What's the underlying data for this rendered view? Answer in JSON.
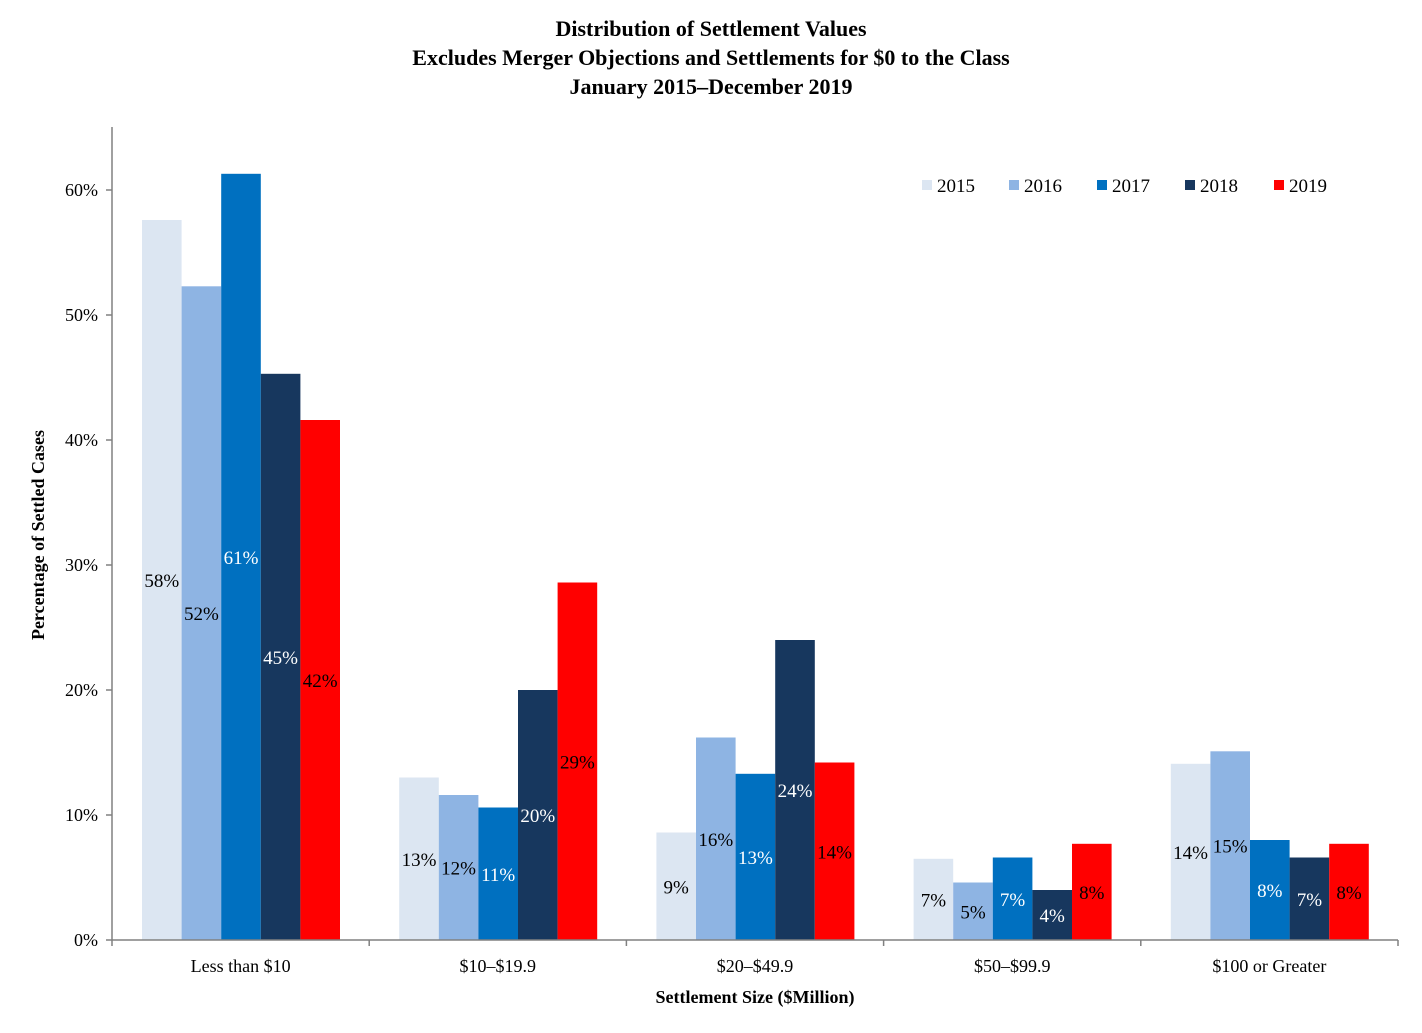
{
  "chart_data": {
    "type": "bar",
    "title": "Distribution of Settlement Values",
    "subtitle": "Excludes Merger Objections and Settlements for $0 to the Class",
    "subtitle2": "January 2015–December 2019",
    "xlabel": "Settlement Size ($Million)",
    "ylabel": "Percentage of Settled Cases",
    "ylim": [
      0,
      65
    ],
    "yticks": [
      0,
      10,
      20,
      30,
      40,
      50,
      60
    ],
    "ytick_labels": [
      "0%",
      "10%",
      "20%",
      "30%",
      "40%",
      "50%",
      "60%"
    ],
    "categories": [
      "Less than $10",
      "$10–$19.9",
      "$20–$49.9",
      "$50–$99.9",
      "$100 or Greater"
    ],
    "series": [
      {
        "name": "2015",
        "color": "#dce6f2",
        "label_color": "#000000",
        "values": [
          57.6,
          13.0,
          8.6,
          6.5,
          14.1
        ],
        "labels": [
          "58%",
          "13%",
          "9%",
          "7%",
          "14%"
        ]
      },
      {
        "name": "2016",
        "color": "#8eb4e3",
        "label_color": "#000000",
        "values": [
          52.3,
          11.6,
          16.2,
          4.6,
          15.1
        ],
        "labels": [
          "52%",
          "12%",
          "16%",
          "5%",
          "15%"
        ]
      },
      {
        "name": "2017",
        "color": "#0070c0",
        "label_color": "#ffffff",
        "values": [
          61.3,
          10.6,
          13.3,
          6.6,
          8.0
        ],
        "labels": [
          "61%",
          "11%",
          "13%",
          "7%",
          "8%"
        ]
      },
      {
        "name": "2018",
        "color": "#17375e",
        "label_color": "#ffffff",
        "values": [
          45.3,
          20.0,
          24.0,
          4.0,
          6.6
        ],
        "labels": [
          "45%",
          "20%",
          "24%",
          "4%",
          "7%"
        ]
      },
      {
        "name": "2019",
        "color": "#ff0000",
        "label_color": "#000000",
        "values": [
          41.6,
          28.6,
          14.2,
          7.7,
          7.7
        ],
        "labels": [
          "42%",
          "29%",
          "14%",
          "8%",
          "8%"
        ]
      }
    ],
    "legend_position": "top-right",
    "grid": false
  }
}
